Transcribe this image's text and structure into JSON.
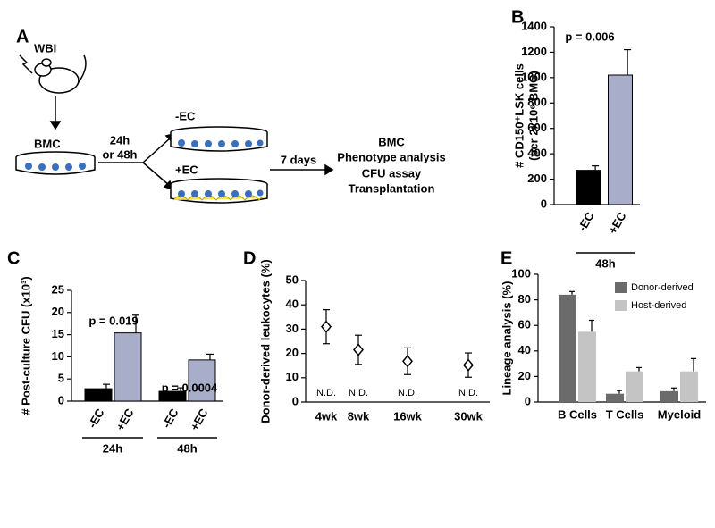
{
  "panels": [
    "A",
    "B",
    "C",
    "D",
    "E"
  ],
  "diagram": {
    "labels": [
      "WBI",
      "BMC",
      "24h",
      "or 48h",
      "-EC",
      "+EC",
      "7 days",
      "BMC",
      "Phenotype analysis",
      "CFU assay",
      "Transplantation"
    ]
  },
  "chart_data": [
    {
      "type": "bar",
      "ylabel": "# CD150⁺LSK cells",
      "ysublabel": "(per 2x10⁶ BMC)",
      "categories": [
        "-EC",
        "+EC"
      ],
      "values": [
        270,
        1020
      ],
      "errors": [
        35,
        200
      ],
      "colors": [
        "#000000",
        "#a8aec9"
      ],
      "groups": [
        "48h"
      ],
      "annotations": [
        "p = 0.006"
      ],
      "ylim": [
        0,
        1400
      ],
      "yticks": [
        0,
        200,
        400,
        600,
        800,
        1000,
        1200,
        1400
      ]
    },
    {
      "type": "bar",
      "ylabel": "# Post-culture CFU (x10³)",
      "categories": [
        "-EC",
        "+EC",
        "-EC",
        "+EC"
      ],
      "values": [
        2.8,
        15.4,
        2.2,
        9.3
      ],
      "errors": [
        1.0,
        4.0,
        0.8,
        1.3
      ],
      "colors": [
        "#000000",
        "#a8aec9",
        "#000000",
        "#a8aec9"
      ],
      "groups": [
        "24h",
        "48h"
      ],
      "annotations": [
        "p = 0.019",
        "p = 0.0004"
      ],
      "ylim": [
        0,
        25
      ],
      "yticks": [
        0,
        5,
        10,
        15,
        20,
        25
      ]
    },
    {
      "type": "scatter",
      "ylabel": "Donor-derived leukocytes (%)",
      "categories": [
        "4wk",
        "8wk",
        "16wk",
        "30wk"
      ],
      "values": [
        31,
        21.5,
        16.8,
        15.2
      ],
      "errors": [
        7,
        6,
        5.5,
        5
      ],
      "annotations": [
        "N.D.",
        "N.D.",
        "N.D.",
        "N.D."
      ],
      "ylim": [
        0,
        50
      ],
      "yticks": [
        0,
        10,
        20,
        30,
        40,
        50
      ]
    },
    {
      "type": "grouped-bar",
      "ylabel": "Lineage analysis (%)",
      "categories": [
        "B Cells",
        "T Cells",
        "Myeloid"
      ],
      "series": [
        {
          "name": "Donor-derived",
          "color": "#6b6b6b",
          "values": [
            84,
            6.5,
            8.5
          ],
          "errors": [
            2.5,
            2.5,
            2.5
          ]
        },
        {
          "name": "Host-derived",
          "color": "#c4c4c4",
          "values": [
            55,
            24,
            24
          ],
          "errors": [
            9,
            3,
            10
          ]
        }
      ],
      "ylim": [
        0,
        100
      ],
      "yticks": [
        0,
        20,
        40,
        60,
        80,
        100
      ]
    }
  ]
}
